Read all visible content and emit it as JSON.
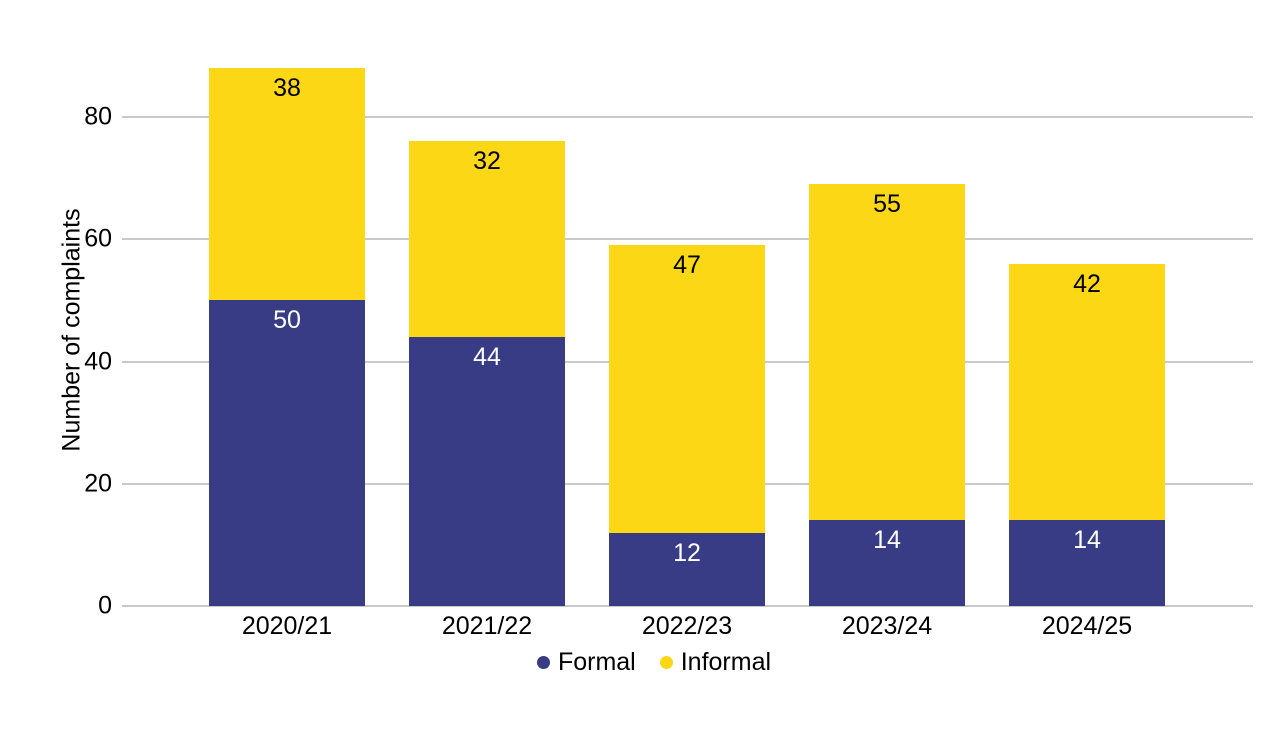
{
  "chart_data": {
    "type": "bar",
    "stacked": true,
    "title": "",
    "ylabel": "Number of complaints",
    "categories": [
      "2020/21",
      "2021/22",
      "2022/23",
      "2023/24",
      "2024/25"
    ],
    "series": [
      {
        "name": "Formal",
        "color": "#373C85",
        "label_color": "#FFFFFF",
        "values": [
          50,
          44,
          12,
          14,
          14
        ]
      },
      {
        "name": "Informal",
        "color": "#FBD715",
        "label_color": "#000000",
        "values": [
          38,
          32,
          47,
          55,
          42
        ]
      }
    ],
    "yticks": [
      0,
      20,
      40,
      60,
      80
    ],
    "ylim": [
      0,
      90
    ],
    "grid": "horizontal",
    "gridline_color": "#C9C9C9",
    "legend_position": "bottom",
    "value_labels": "inside-top-of-segment"
  }
}
